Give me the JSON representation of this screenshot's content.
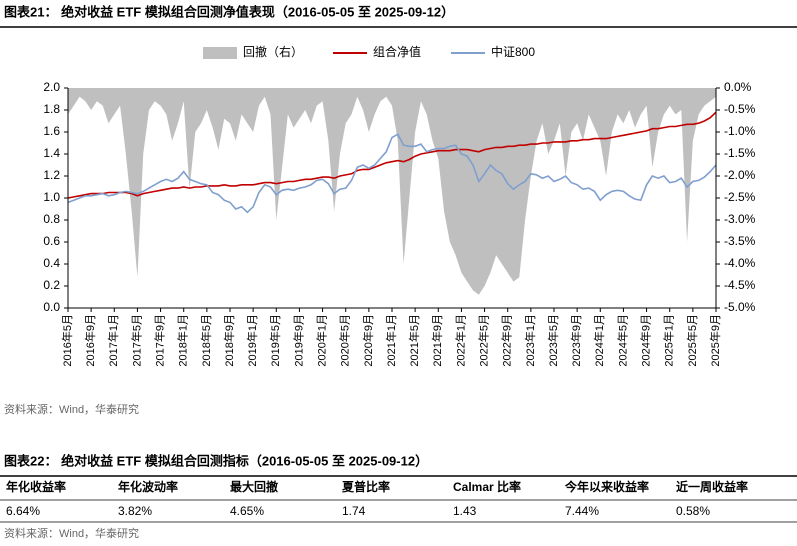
{
  "figure_title": "图表21：  绝对收益 ETF 模拟组合回测净值表现（2016-05-05 至 2025-09-12）",
  "chart_data": {
    "type": "line",
    "categories": [
      "2016年5月",
      null,
      null,
      null,
      "2016年9月",
      null,
      null,
      null,
      "2017年1月",
      null,
      null,
      null,
      "2017年5月",
      null,
      null,
      null,
      "2017年9月",
      null,
      null,
      null,
      "2018年1月",
      null,
      null,
      null,
      "2018年5月",
      null,
      null,
      null,
      "2018年9月",
      null,
      null,
      null,
      "2019年1月",
      null,
      null,
      null,
      "2019年5月",
      null,
      null,
      null,
      "2019年9月",
      null,
      null,
      null,
      "2020年1月",
      null,
      null,
      null,
      "2020年5月",
      null,
      null,
      null,
      "2020年9月",
      null,
      null,
      null,
      "2021年1月",
      null,
      null,
      null,
      "2021年5月",
      null,
      null,
      null,
      "2021年9月",
      null,
      null,
      null,
      "2022年1月",
      null,
      null,
      null,
      "2022年5月",
      null,
      null,
      null,
      "2022年9月",
      null,
      null,
      null,
      "2023年1月",
      null,
      null,
      null,
      "2023年5月",
      null,
      null,
      null,
      "2023年9月",
      null,
      null,
      null,
      "2024年1月",
      null,
      null,
      null,
      "2024年5月",
      null,
      null,
      null,
      "2024年9月",
      null,
      null,
      null,
      "2025年1月",
      null,
      null,
      null,
      "2025年5月",
      null,
      null,
      null,
      "2025年9月"
    ],
    "series": [
      {
        "name": "组合净值",
        "color": "#c00000",
        "style": "line",
        "values": [
          1.0,
          1.01,
          1.02,
          1.03,
          1.04,
          1.04,
          1.04,
          1.05,
          1.05,
          1.05,
          1.05,
          1.04,
          1.02,
          1.04,
          1.05,
          1.06,
          1.07,
          1.08,
          1.09,
          1.09,
          1.1,
          1.09,
          1.1,
          1.1,
          1.11,
          1.11,
          1.11,
          1.12,
          1.11,
          1.11,
          1.12,
          1.12,
          1.12,
          1.13,
          1.14,
          1.14,
          1.13,
          1.14,
          1.15,
          1.15,
          1.16,
          1.17,
          1.17,
          1.18,
          1.19,
          1.19,
          1.18,
          1.2,
          1.21,
          1.22,
          1.25,
          1.26,
          1.26,
          1.28,
          1.3,
          1.32,
          1.33,
          1.34,
          1.33,
          1.35,
          1.38,
          1.4,
          1.41,
          1.42,
          1.43,
          1.43,
          1.43,
          1.44,
          1.44,
          1.44,
          1.43,
          1.42,
          1.44,
          1.45,
          1.46,
          1.46,
          1.47,
          1.47,
          1.48,
          1.48,
          1.49,
          1.49,
          1.5,
          1.5,
          1.51,
          1.51,
          1.51,
          1.52,
          1.52,
          1.53,
          1.53,
          1.54,
          1.54,
          1.54,
          1.55,
          1.56,
          1.57,
          1.58,
          1.59,
          1.6,
          1.61,
          1.63,
          1.63,
          1.64,
          1.65,
          1.65,
          1.66,
          1.67,
          1.67,
          1.68,
          1.7,
          1.73,
          1.78
        ]
      },
      {
        "name": "中证800",
        "color": "#7f9fcf",
        "style": "line",
        "values": [
          0.96,
          0.98,
          1.0,
          1.02,
          1.02,
          1.03,
          1.04,
          1.02,
          1.03,
          1.05,
          1.06,
          1.05,
          1.04,
          1.06,
          1.09,
          1.12,
          1.15,
          1.17,
          1.15,
          1.18,
          1.24,
          1.17,
          1.15,
          1.13,
          1.12,
          1.05,
          1.03,
          0.98,
          0.96,
          0.9,
          0.92,
          0.87,
          0.92,
          1.05,
          1.12,
          1.1,
          1.03,
          1.07,
          1.08,
          1.07,
          1.09,
          1.1,
          1.12,
          1.16,
          1.17,
          1.13,
          1.04,
          1.08,
          1.09,
          1.16,
          1.28,
          1.3,
          1.27,
          1.3,
          1.36,
          1.42,
          1.55,
          1.58,
          1.48,
          1.47,
          1.47,
          1.49,
          1.42,
          1.44,
          1.45,
          1.45,
          1.47,
          1.48,
          1.4,
          1.38,
          1.3,
          1.15,
          1.22,
          1.3,
          1.25,
          1.22,
          1.13,
          1.08,
          1.12,
          1.15,
          1.22,
          1.21,
          1.18,
          1.2,
          1.15,
          1.17,
          1.2,
          1.14,
          1.12,
          1.08,
          1.09,
          1.06,
          0.98,
          1.03,
          1.06,
          1.07,
          1.06,
          1.02,
          0.99,
          0.98,
          1.12,
          1.2,
          1.18,
          1.2,
          1.14,
          1.15,
          1.18,
          1.1,
          1.15,
          1.16,
          1.19,
          1.24,
          1.3
        ]
      },
      {
        "name": "回撤（右）",
        "color": "#bfbfbf",
        "style": "area",
        "axis": "y2",
        "values": [
          -0.6,
          -0.4,
          -0.2,
          -0.3,
          -0.5,
          -0.3,
          -0.4,
          -0.8,
          -0.6,
          -0.4,
          -1.5,
          -2.8,
          -4.3,
          -1.5,
          -0.5,
          -0.3,
          -0.4,
          -0.6,
          -1.2,
          -0.8,
          -0.3,
          -2.3,
          -1.0,
          -0.8,
          -0.5,
          -0.9,
          -1.4,
          -0.7,
          -0.8,
          -1.2,
          -0.6,
          -0.8,
          -1.0,
          -0.4,
          -0.2,
          -0.6,
          -3.0,
          -1.8,
          -0.6,
          -0.9,
          -0.7,
          -0.5,
          -0.8,
          -0.4,
          -0.3,
          -1.2,
          -2.8,
          -1.5,
          -0.8,
          -0.6,
          -0.2,
          -0.5,
          -1.0,
          -0.6,
          -0.3,
          -0.2,
          -0.4,
          -1.2,
          -4.0,
          -2.5,
          -1.0,
          -0.3,
          -0.6,
          -1.2,
          -1.6,
          -2.8,
          -3.5,
          -3.8,
          -4.2,
          -4.4,
          -4.6,
          -4.7,
          -4.5,
          -4.2,
          -3.8,
          -4.0,
          -4.2,
          -4.4,
          -4.3,
          -3.0,
          -2.0,
          -1.2,
          -0.8,
          -1.5,
          -1.2,
          -0.8,
          -2.0,
          -1.0,
          -0.8,
          -1.2,
          -0.6,
          -0.9,
          -1.2,
          -2.0,
          -1.0,
          -0.6,
          -0.8,
          -0.5,
          -0.9,
          -0.6,
          -0.4,
          -1.8,
          -1.0,
          -0.6,
          -0.4,
          -0.6,
          -0.5,
          -3.5,
          -1.2,
          -0.6,
          -0.4,
          -0.3,
          -0.2
        ]
      }
    ],
    "legend_order": [
      2,
      0,
      1
    ],
    "legend": "top",
    "ylim": [
      0,
      2
    ],
    "yticks": [
      {
        "value": 0,
        "label": "0.0"
      },
      {
        "value": 0.2,
        "label": "0.2"
      },
      {
        "value": 0.4,
        "label": "0.4"
      },
      {
        "value": 0.6,
        "label": "0.6"
      },
      {
        "value": 0.8,
        "label": "0.8"
      },
      {
        "value": 1,
        "label": "1.0"
      },
      {
        "value": 1.2,
        "label": "1.2"
      },
      {
        "value": 1.4,
        "label": "1.4"
      },
      {
        "value": 1.6,
        "label": "1.6"
      },
      {
        "value": 1.8,
        "label": "1.8"
      },
      {
        "value": 2,
        "label": "2.0"
      }
    ],
    "y2lim": [
      -5,
      0
    ],
    "y2ticks": [
      {
        "value": 0,
        "label": "0.0%"
      },
      {
        "value": -0.5,
        "label": "-0.5%"
      },
      {
        "value": -1,
        "label": "-1.0%"
      },
      {
        "value": -1.5,
        "label": "-1.5%"
      },
      {
        "value": -2,
        "label": "-2.0%"
      },
      {
        "value": -2.5,
        "label": "-2.5%"
      },
      {
        "value": -3,
        "label": "-3.0%"
      },
      {
        "value": -3.5,
        "label": "-3.5%"
      },
      {
        "value": -4,
        "label": "-4.0%"
      },
      {
        "value": -4.5,
        "label": "-4.5%"
      },
      {
        "value": -5,
        "label": "-5.0%"
      }
    ]
  },
  "source": "资料来源：Wind，华泰研究",
  "table_title": "图表22：  绝对收益 ETF 模拟组合回测指标（2016-05-05 至 2025-09-12）",
  "table": {
    "header": [
      "年化收益率",
      "年化波动率",
      "最大回撤",
      "夏普比率",
      "Calmar 比率",
      "今年以来收益率",
      "近一周收益率"
    ],
    "rows": [
      [
        "6.64%",
        "3.82%",
        "4.65%",
        "1.74",
        "1.43",
        "7.44%",
        "0.58%"
      ]
    ]
  },
  "table_source": "资料来源：Wind，华泰研究"
}
